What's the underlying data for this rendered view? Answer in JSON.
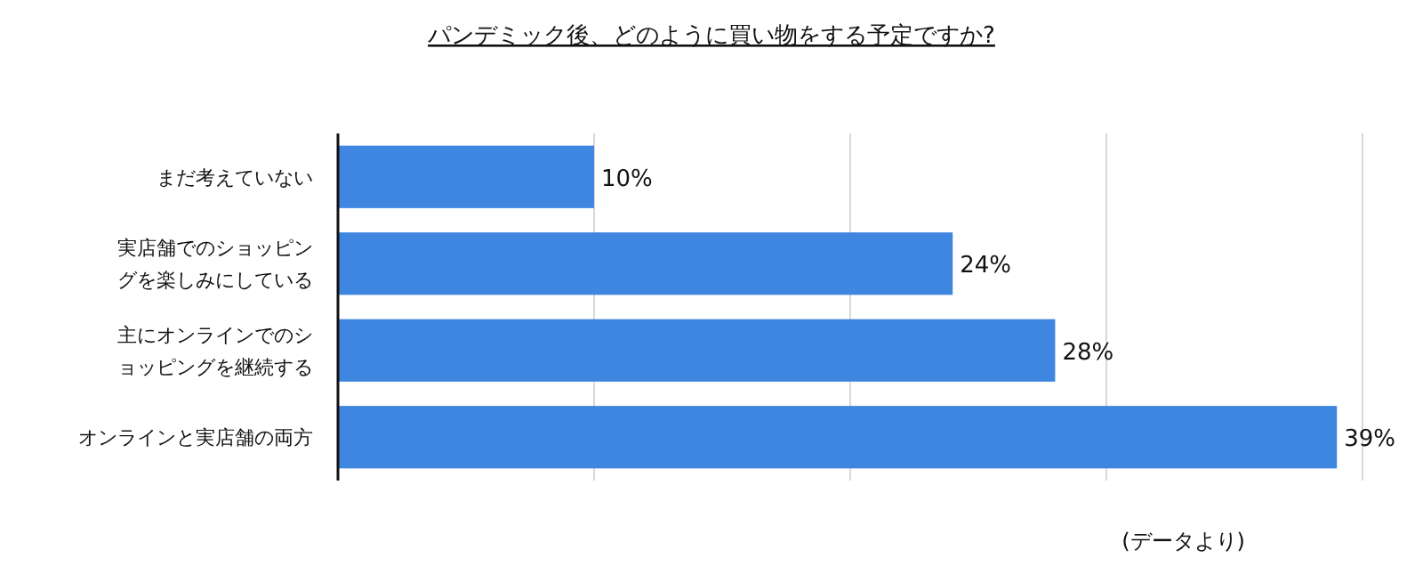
{
  "chart_data": {
    "type": "bar",
    "orientation": "horizontal",
    "title": "パンデミック後、どのように買い物をする予定ですか?",
    "categories": [
      "まだ考えていない",
      "実店舗でのショッピングを楽しみにしている",
      "主にオンラインでのショッピングを継続する",
      "オンラインと実店舗の両方"
    ],
    "values": [
      10,
      24,
      28,
      39
    ],
    "value_labels": [
      "10%",
      "24%",
      "28%",
      "39%"
    ],
    "color": "#3f86e0",
    "xlim": [
      0,
      40
    ],
    "xticks": [
      {
        "value": 0,
        "label": null
      },
      {
        "value": 10,
        "label": null
      },
      {
        "value": 20,
        "label": null
      },
      {
        "value": 30,
        "label": null
      },
      {
        "value": 40,
        "label": null
      }
    ],
    "grid": "x",
    "tick_labels": "y",
    "annotations": [
      "(データより)"
    ]
  }
}
